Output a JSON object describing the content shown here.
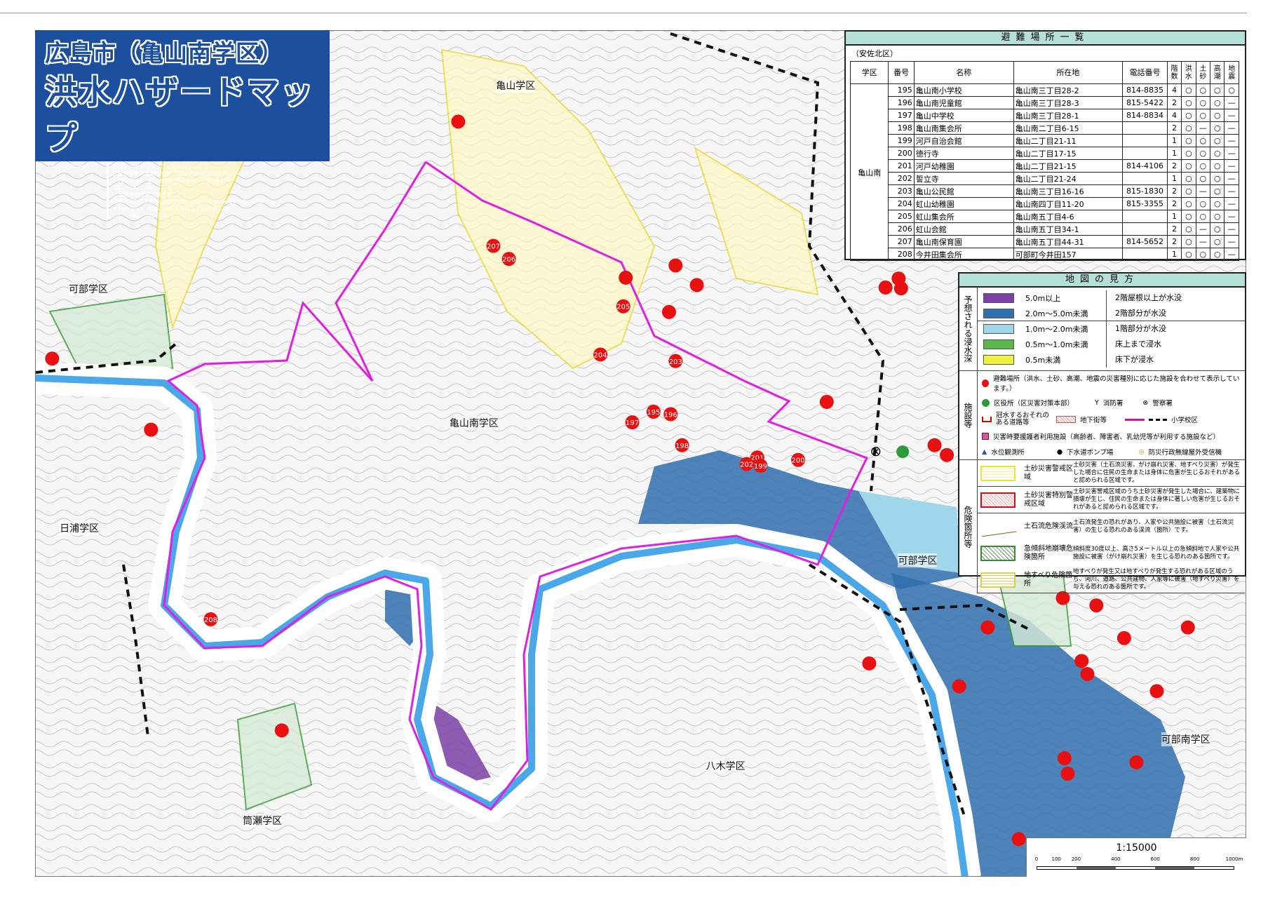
{
  "title": {
    "line1": "広島市（亀山南学区）",
    "line2": "洪水ハザードマップ",
    "contact_label": "【お問い合わせ先】",
    "contact_lines": [
      "□ 洪水ハザードマップ全般に関すること",
      "広島市道路交通局河川課　http://kasen@city.hiroshima.jp",
      "〒730-8586　広島市中区国泰寺町一丁目6番34号",
      "TEL：（082）504-2377",
      "□ 避難体制全般に関すること",
      "広島市消防局危機管理部防災課　http://fs-bosai@city.hiroshima.jp",
      "〒730-0051　広島市中区大手町五丁目20番12号",
      "TEL：（082）546-3441"
    ]
  },
  "shelter_list": {
    "heading": "避難場所一覧",
    "ward": "（安佐北区）",
    "district": "亀山南",
    "columns": [
      "学区",
      "番号",
      "名称",
      "所在地",
      "電話番号",
      "階数",
      "洪水",
      "土砂",
      "高潮",
      "地震"
    ],
    "rows": [
      [
        "195",
        "亀山南小学校",
        "亀山南三丁目28-2",
        "814-8835",
        "4",
        "○",
        "○",
        "○",
        "○"
      ],
      [
        "196",
        "亀山南児童館",
        "亀山南三丁目28-3",
        "815-5422",
        "2",
        "○",
        "○",
        "○",
        "—"
      ],
      [
        "197",
        "亀山中学校",
        "亀山南三丁目28-1",
        "814-8834",
        "4",
        "○",
        "○",
        "○",
        "—"
      ],
      [
        "198",
        "亀山南集会所",
        "亀山南二丁目6-15",
        "",
        "2",
        "○",
        "—",
        "○",
        "—"
      ],
      [
        "199",
        "河戸自治会館",
        "亀山二丁目21-11",
        "",
        "1",
        "○",
        "○",
        "○",
        "—"
      ],
      [
        "200",
        "徳行寺",
        "亀山二丁目17-15",
        "",
        "1",
        "○",
        "○",
        "○",
        "—"
      ],
      [
        "201",
        "河戸幼稚園",
        "亀山二丁目21-15",
        "814-4106",
        "2",
        "○",
        "○",
        "○",
        "—"
      ],
      [
        "202",
        "誓立寺",
        "亀山二丁目21-24",
        "",
        "1",
        "○",
        "○",
        "○",
        "—"
      ],
      [
        "203",
        "亀山公民館",
        "亀山南三丁目16-16",
        "815-1830",
        "2",
        "○",
        "—",
        "○",
        "—"
      ],
      [
        "204",
        "虹山幼稚園",
        "亀山南四丁目11-20",
        "815-3355",
        "2",
        "○",
        "○",
        "○",
        "—"
      ],
      [
        "205",
        "虹山集会所",
        "亀山南五丁目4-6",
        "",
        "1",
        "○",
        "○",
        "○",
        "—"
      ],
      [
        "206",
        "虹山会館",
        "亀山南五丁目34-1",
        "",
        "2",
        "○",
        "—",
        "○",
        "—"
      ],
      [
        "207",
        "亀山南保育園",
        "亀山南五丁目44-31",
        "814-5652",
        "2",
        "○",
        "—",
        "○",
        "—"
      ],
      [
        "208",
        "今井田集会所",
        "可部町今井田157",
        "",
        "1",
        "○",
        "○",
        "○",
        "—"
      ]
    ]
  },
  "legend": {
    "heading": "地図の見方",
    "depth_title": "予想される浸水深",
    "depth": [
      {
        "range": "5.0m以上",
        "meaning": "2階屋根以上が水没",
        "color": "#7b3fa6"
      },
      {
        "range": "2.0m～5.0m未満",
        "meaning": "2階部分が水没",
        "color": "#2f6fae"
      },
      {
        "range": "1.0m～2.0m未満",
        "meaning": "1階部分が水没",
        "color": "#9fd6ea"
      },
      {
        "range": "0.5m～1.0m未満",
        "meaning": "床上まで浸水",
        "color": "#59b84a"
      },
      {
        "range": "0.5m未満",
        "meaning": "床下が浸水",
        "color": "#eef23a"
      }
    ],
    "facility_title": "施設等",
    "facilities": {
      "shelter": "避難場所（洪水、土砂、高潮、地震の災害種別に応じた施設を合わせて表示しています。）",
      "ward_office": "区役所（区災害対策本部）",
      "fire": "消防署",
      "police": "警察署",
      "flood_road": "冠水するおそれのある道路等",
      "underground": "地下街等",
      "school_district": "小学校区",
      "care": "災害時要援護者利用施設（高齢者、障害者、乳幼児等が利用する施設など）",
      "water_level": "水位観測所",
      "pump": "下水道ポンプ場",
      "radio": "防災行政無線屋外受信機"
    },
    "hazard_title": "危険箇所等",
    "hazards": [
      {
        "name": "土砂災害警戒区域",
        "desc": "土砂災害（土石流災害、がけ崩れ災害、地すべり災害）が発生した場合に住民の生命または身体に危害が生じるおそれがあると認められる区域です。"
      },
      {
        "name": "土砂災害特別警戒区域",
        "desc": "土砂災害警戒区域のうち土砂災害が発生した場合に、建築物に損壊が生じ、住民の生命または身体に著しい危害が生じるおそれがあると認められる区域です。"
      },
      {
        "name": "土石流危険渓流",
        "desc": "土石流発生の恐れがあり、人家や公共施設に被害（土石流災害）の生じる恐れのある渓流（箇所）です。"
      },
      {
        "name": "急傾斜地崩壊危険箇所",
        "desc": "傾斜度30度以上、高さ5メートル以上の急傾斜地で人家や公共施設に被害（がけ崩れ災害）を生じる恐れのある箇所です。"
      },
      {
        "name": "地すべり危険箇所",
        "desc": "地すべりが発生又は地すべりが発生する恐れがある区域のうち、河川、道路、公共建物、人家等に被害（地すべり災害）を与える恐れのある箇所です。"
      }
    ]
  },
  "map": {
    "districts": [
      "亀山学区",
      "可部学区",
      "亀山南学区",
      "日浦学区",
      "可部学区",
      "可部南学区",
      "八木学区",
      "筒瀬学区"
    ],
    "shelter_markers": [
      "207",
      "206",
      "205",
      "204",
      "203",
      "195",
      "196",
      "197",
      "198",
      "201",
      "202",
      "199",
      "200",
      "208"
    ],
    "colors": {
      "river": "#4aa8e8",
      "boundary": "#e020e0",
      "shelter": "#e81010"
    }
  },
  "scale": {
    "ratio": "1:15000",
    "ticks": [
      "0",
      "100",
      "200",
      "400",
      "600",
      "800",
      "1000m"
    ]
  }
}
